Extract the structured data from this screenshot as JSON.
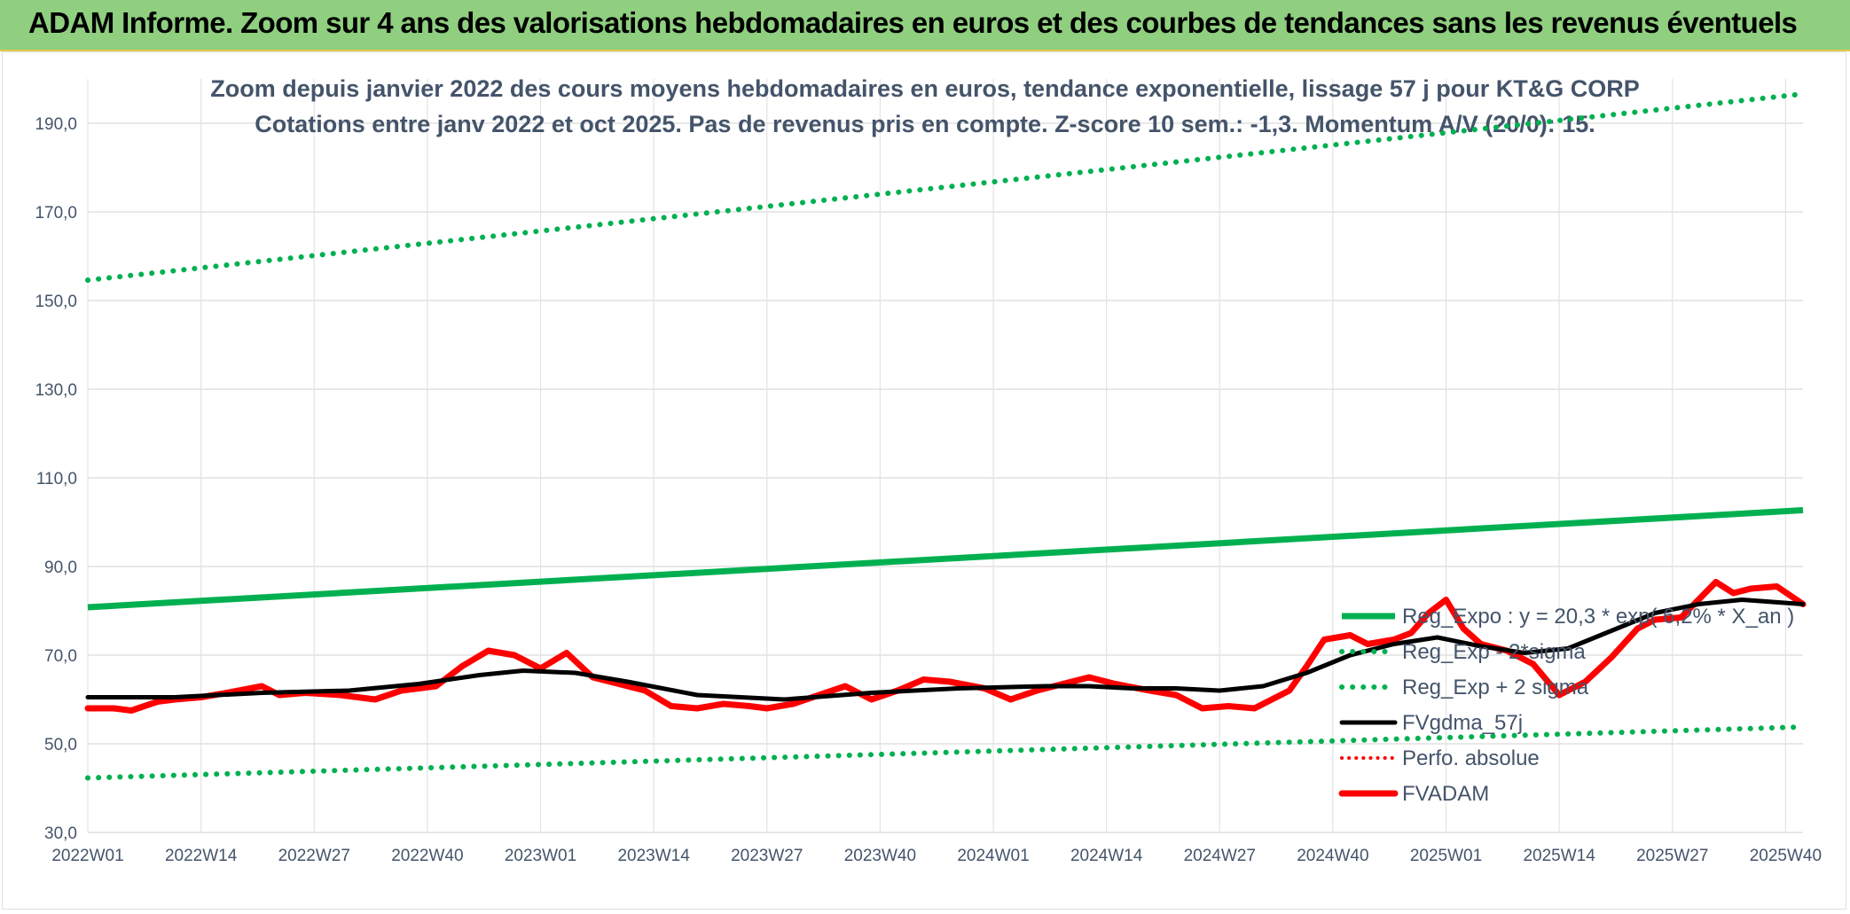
{
  "header": {
    "title": "ADAM Informe. Zoom sur 4 ans des valorisations hebdomadaires en euros et des courbes de tendances sans les revenus éventuels"
  },
  "chart_data": {
    "type": "line",
    "title": "Zoom depuis janvier 2022 des cours moyens hebdomadaires en euros, tendance exponentielle, lissage 57 j pour KT&G CORP",
    "subtitle": "Cotations entre janv 2022 et oct 2025. Pas de revenus pris en compte. Z-score 10 sem.: -1,3. Momentum A/V (20/0): 15.",
    "xlabel": "",
    "ylabel": "",
    "x_ticks": [
      "2022W01",
      "2022W14",
      "2022W27",
      "2022W40",
      "2023W01",
      "2023W14",
      "2023W27",
      "2023W40",
      "2024W01",
      "2024W14",
      "2024W27",
      "2024W40",
      "2025W01",
      "2025W14",
      "2025W27",
      "2025W40"
    ],
    "y_ticks": [
      "30,0",
      "50,0",
      "70,0",
      "90,0",
      "110,0",
      "130,0",
      "150,0",
      "170,0",
      "190,0"
    ],
    "ylim": [
      30,
      200
    ],
    "x_range_weeks": [
      0,
      197
    ],
    "grid": true,
    "legend_placement": "bottom-right",
    "colors": {
      "reg_expo": "#00b050",
      "reg_band": "#00b050",
      "smoothed": "#000000",
      "perfo": "#ff0000",
      "price": "#ff0000"
    },
    "series": [
      {
        "name": "Reg_Expo : y = 20,3 * exp( 6,2% * X_an )",
        "style": "solid-thick",
        "x": [
          0,
          197
        ],
        "values": [
          80.8,
          102.7
        ]
      },
      {
        "name": "Reg_Exp - 2*sigma",
        "style": "dotted",
        "x": [
          0,
          197
        ],
        "values": [
          42.3,
          53.8
        ]
      },
      {
        "name": "Reg_Exp + 2 sigma",
        "style": "dotted",
        "x": [
          0,
          197
        ],
        "values": [
          154.6,
          196.6
        ]
      },
      {
        "name": "FVgdma_57j",
        "style": "solid",
        "x": [
          0,
          10,
          20,
          30,
          38,
          45,
          50,
          56,
          62,
          70,
          80,
          90,
          100,
          110,
          115,
          120,
          125,
          130,
          135,
          140,
          145,
          150,
          155,
          160,
          165,
          170,
          175,
          180,
          185,
          190,
          197
        ],
        "values": [
          60.5,
          60.5,
          61.5,
          62.0,
          63.5,
          65.5,
          66.5,
          66.0,
          64.0,
          61.0,
          60.0,
          61.5,
          62.5,
          63.0,
          63.0,
          62.5,
          62.5,
          62.0,
          63.0,
          66.0,
          70.0,
          72.5,
          74.0,
          72.0,
          70.5,
          71.5,
          75.5,
          79.5,
          81.5,
          82.5,
          81.5
        ]
      },
      {
        "name": "Perfo. absolue",
        "style": "dotted",
        "x": [],
        "values": []
      },
      {
        "name": "FVADAM",
        "style": "solid-thick",
        "x": [
          0,
          3,
          5,
          8,
          10,
          13,
          16,
          20,
          22,
          25,
          29,
          33,
          36,
          40,
          43,
          46,
          49,
          52,
          55,
          58,
          61,
          64,
          67,
          70,
          73,
          76,
          78,
          81,
          84,
          87,
          90,
          93,
          96,
          99,
          103,
          106,
          109,
          112,
          115,
          118,
          122,
          125,
          128,
          131,
          134,
          136,
          138,
          140,
          142,
          145,
          147,
          150,
          152,
          154,
          156,
          158,
          160,
          163,
          166,
          169,
          172,
          175,
          178,
          180,
          183,
          185,
          187,
          189,
          191,
          194,
          197
        ],
        "values": [
          58.0,
          58.0,
          57.5,
          59.5,
          60.0,
          60.5,
          61.5,
          63.0,
          61.0,
          61.5,
          61.0,
          60.0,
          62.0,
          63.0,
          67.5,
          71.0,
          70.0,
          67.0,
          70.5,
          65.0,
          63.5,
          62.0,
          58.5,
          58.0,
          59.0,
          58.5,
          58.0,
          59.0,
          61.0,
          63.0,
          60.0,
          62.0,
          64.5,
          64.0,
          62.5,
          60.0,
          62.0,
          63.5,
          65.0,
          63.5,
          62.0,
          61.0,
          58.0,
          58.5,
          58.0,
          60.0,
          62.0,
          67.5,
          73.5,
          74.5,
          72.5,
          73.5,
          75.0,
          79.5,
          82.5,
          76.0,
          72.5,
          71.0,
          68.0,
          61.0,
          64.0,
          69.5,
          76.0,
          78.0,
          78.5,
          82.5,
          86.5,
          84.0,
          85.0,
          85.5,
          81.5
        ]
      }
    ]
  }
}
